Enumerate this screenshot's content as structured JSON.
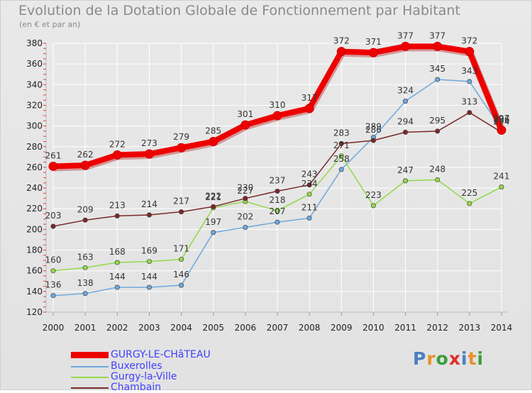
{
  "title": "Evolution de la Dotation Globale de Fonctionnement par Habitant",
  "subtitle": "(en € et par an)",
  "logo": {
    "text": "Proxiti",
    "colors": [
      "#4a7fc1",
      "#e8912b",
      "#3a9e3a",
      "#e02b2b",
      "#4a7fc1",
      "#e8912b",
      "#3a9e3a"
    ]
  },
  "chart_data": {
    "type": "line",
    "x": [
      2000,
      2001,
      2002,
      2003,
      2004,
      2005,
      2006,
      2007,
      2008,
      2009,
      2010,
      2011,
      2012,
      2013,
      2014
    ],
    "ylim": [
      120,
      380
    ],
    "yticks": [
      120,
      140,
      160,
      180,
      200,
      220,
      240,
      260,
      280,
      300,
      320,
      340,
      360,
      380
    ],
    "grid": true,
    "legend_position": "bottom-left",
    "series": [
      {
        "name": "GURGY-LE-CHâTEAU",
        "color": "#ee0000",
        "values": [
          261,
          262,
          272,
          273,
          279,
          285,
          301,
          310,
          317,
          372,
          371,
          377,
          377,
          372,
          296
        ]
      },
      {
        "name": "Buxerolles",
        "color": "#6fa8dc",
        "values": [
          136,
          138,
          144,
          144,
          146,
          197,
          202,
          207,
          211,
          258,
          289,
          324,
          345,
          343,
          297
        ]
      },
      {
        "name": "Gurgy-la-Ville",
        "color": "#93d84a",
        "values": [
          160,
          163,
          168,
          169,
          171,
          221,
          227,
          218,
          234,
          271,
          223,
          247,
          248,
          225,
          241
        ]
      },
      {
        "name": "Chambain",
        "color": "#7a2828",
        "values": [
          203,
          209,
          213,
          214,
          217,
          222,
          230,
          237,
          243,
          283,
          286,
          294,
          295,
          313,
          294
        ]
      }
    ]
  }
}
